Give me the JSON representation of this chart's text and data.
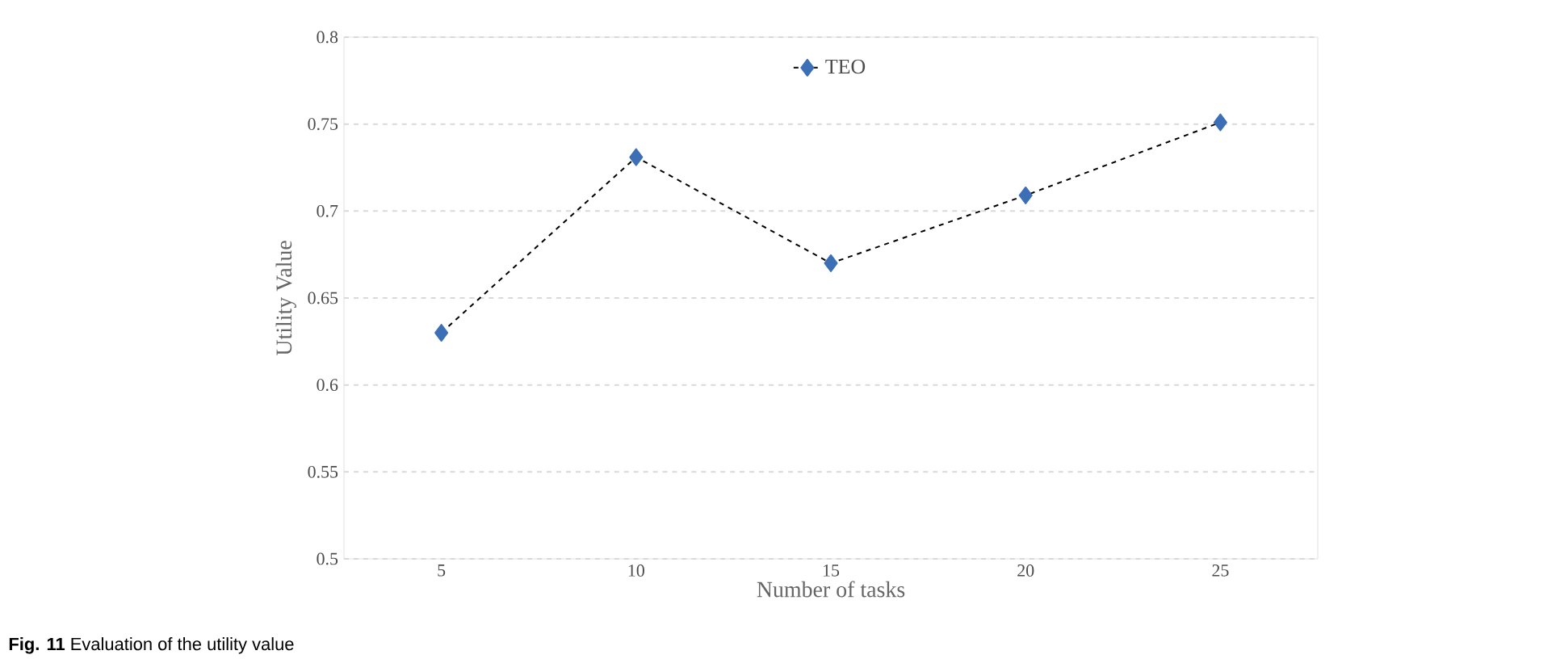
{
  "chart_data": {
    "type": "line",
    "xlabel": "Number of tasks",
    "ylabel": "Utility Value",
    "categories": [
      "5",
      "10",
      "15",
      "20",
      "25"
    ],
    "series": [
      {
        "name": "TEO",
        "color": "#3d6fb6",
        "values": [
          0.63,
          0.731,
          0.67,
          0.709,
          0.751
        ]
      }
    ],
    "ylim": [
      0.5,
      0.8
    ],
    "yticks": [
      0.5,
      0.55,
      0.6,
      0.65,
      0.7,
      0.75,
      0.8
    ],
    "grid": "y",
    "legend": "top",
    "marker": "diamond",
    "line_style": "dashed",
    "annotations": [
      "**Fig. 11** Evaluation of the utility value"
    ]
  }
}
